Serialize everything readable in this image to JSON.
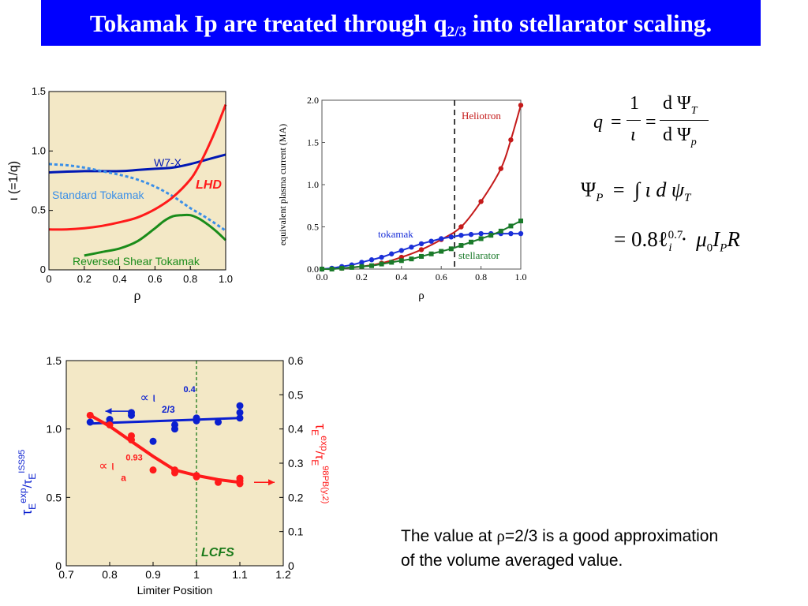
{
  "slide": {
    "title_main": "Tokamak Ip are treated through q",
    "title_sub": "2/3",
    "title_rest": " into stellarator scaling.",
    "note_line1_a": "The value at ",
    "note_rho": "ρ",
    "note_line1_b": "=2/3 is a good approximation",
    "note_line2": "of the volume averaged value."
  },
  "equations": {
    "q": "q",
    "eq": "=",
    "one": "1",
    "iota": "ι",
    "dpsiT": "d Ψ",
    "T": "T",
    "dpsip": "d Ψ",
    "p": "p",
    "PsiP": "Ψ",
    "P": "P",
    "integrand": "∫ ι d ψ",
    "T2": "T",
    "line3": "= 0.8ℓ",
    "i": "i",
    "exp07": "0.7",
    "dot": "·",
    "mu": "μ",
    "zero": "0",
    "I": "I",
    "Psub": "P",
    "R": "R"
  },
  "chart_data": [
    {
      "type": "line",
      "xlabel": "ρ",
      "ylabel": "ι (=1/q)",
      "xlim": [
        0,
        1.0
      ],
      "ylim": [
        0,
        1.5
      ],
      "xticks": [
        "0",
        "0.2",
        "0.4",
        "0.6",
        "0.8",
        "1.0"
      ],
      "yticks": [
        "0",
        "0.5",
        "1.0",
        "1.5"
      ],
      "background": "#f3e8c6",
      "series": [
        {
          "name": "W7-X",
          "color": "#0018b4",
          "style": "solid",
          "x": [
            0,
            0.2,
            0.4,
            0.5,
            0.6,
            0.7,
            0.8,
            0.9,
            1.0
          ],
          "y": [
            0.82,
            0.83,
            0.83,
            0.84,
            0.85,
            0.86,
            0.89,
            0.93,
            0.97
          ]
        },
        {
          "name": "Standard Tokamak",
          "color": "#3a8fe8",
          "style": "dashed",
          "x": [
            0,
            0.1,
            0.2,
            0.3,
            0.4,
            0.5,
            0.6,
            0.7,
            0.8,
            0.9,
            1.0
          ],
          "y": [
            0.89,
            0.88,
            0.86,
            0.83,
            0.8,
            0.76,
            0.7,
            0.62,
            0.52,
            0.43,
            0.33
          ]
        },
        {
          "name": "LHD",
          "color": "#ff1a1a",
          "style": "solid",
          "x": [
            0,
            0.1,
            0.2,
            0.3,
            0.4,
            0.5,
            0.6,
            0.7,
            0.8,
            0.85,
            0.9,
            0.95,
            1.0
          ],
          "y": [
            0.34,
            0.34,
            0.35,
            0.37,
            0.4,
            0.44,
            0.51,
            0.61,
            0.76,
            0.88,
            1.03,
            1.2,
            1.39
          ]
        },
        {
          "name": "Reversed Shear Tokamak",
          "color": "#1a8c1a",
          "style": "solid",
          "x": [
            0.2,
            0.3,
            0.4,
            0.5,
            0.6,
            0.65,
            0.7,
            0.75,
            0.8,
            0.85,
            0.9,
            0.95,
            1.0
          ],
          "y": [
            0.12,
            0.15,
            0.18,
            0.24,
            0.35,
            0.41,
            0.45,
            0.46,
            0.46,
            0.43,
            0.38,
            0.32,
            0.25
          ]
        }
      ],
      "labels": [
        "W7-X",
        "Standard Tokamak",
        "LHD",
        "Reversed Shear Tokamak"
      ]
    },
    {
      "type": "line",
      "xlabel": "ρ",
      "ylabel": "equivalent plasma current (MA)",
      "xlim": [
        0,
        1.0
      ],
      "ylim": [
        0,
        2.0
      ],
      "xticks": [
        "0.0",
        "0.2",
        "0.4",
        "0.6",
        "0.8",
        "1.0"
      ],
      "yticks": [
        "0.0",
        "0.5",
        "1.0",
        "1.5",
        "2.0"
      ],
      "vline_x": 0.667,
      "series": [
        {
          "name": "Heliotron",
          "color": "#c41a1a",
          "x": [
            0,
            0.1,
            0.2,
            0.3,
            0.4,
            0.5,
            0.6,
            0.7,
            0.8,
            0.9,
            0.95,
            1.0
          ],
          "y": [
            0.0,
            0.01,
            0.03,
            0.07,
            0.14,
            0.23,
            0.35,
            0.5,
            0.8,
            1.19,
            1.53,
            1.94
          ]
        },
        {
          "name": "tokamak",
          "color": "#1a2fd8",
          "x": [
            0,
            0.05,
            0.1,
            0.15,
            0.2,
            0.25,
            0.3,
            0.35,
            0.4,
            0.45,
            0.5,
            0.55,
            0.6,
            0.65,
            0.7,
            0.75,
            0.8,
            0.85,
            0.9,
            0.95,
            1.0
          ],
          "y": [
            0,
            0.01,
            0.03,
            0.05,
            0.08,
            0.11,
            0.14,
            0.18,
            0.22,
            0.26,
            0.3,
            0.33,
            0.36,
            0.38,
            0.4,
            0.41,
            0.42,
            0.42,
            0.42,
            0.42,
            0.42
          ]
        },
        {
          "name": "stellarator",
          "color": "#1a7a2a",
          "x": [
            0,
            0.05,
            0.1,
            0.15,
            0.2,
            0.25,
            0.3,
            0.35,
            0.4,
            0.45,
            0.5,
            0.55,
            0.6,
            0.65,
            0.7,
            0.75,
            0.8,
            0.85,
            0.9,
            0.95,
            1.0
          ],
          "y": [
            0,
            0.0,
            0.01,
            0.02,
            0.03,
            0.04,
            0.06,
            0.08,
            0.1,
            0.12,
            0.15,
            0.18,
            0.21,
            0.24,
            0.28,
            0.32,
            0.36,
            0.4,
            0.45,
            0.51,
            0.57
          ]
        }
      ],
      "labels": [
        "Heliotron",
        "tokamak",
        "stellarator"
      ]
    },
    {
      "type": "scatter",
      "xlabel": "Limiter Position",
      "xlim": [
        0.7,
        1.2
      ],
      "ylim_left": [
        0,
        1.5
      ],
      "ylim_right": [
        0,
        0.6
      ],
      "xticks": [
        "0.7",
        "0.8",
        "0.9",
        "1",
        "1.1",
        "1.2"
      ],
      "yticks_left": [
        "0",
        "0.5",
        "1.0",
        "1.5"
      ],
      "yticks_right": [
        "0",
        "0.1",
        "0.2",
        "0.3",
        "0.4",
        "0.5",
        "0.6"
      ],
      "vline_x": 1.0,
      "vline_label": "LCFS",
      "background": "#f3e8c6",
      "blue_points": {
        "color": "#0a1fd0",
        "x": [
          0.755,
          0.8,
          0.85,
          0.85,
          0.9,
          0.95,
          0.95,
          1.0,
          1.0,
          1.05,
          1.1,
          1.1,
          1.1
        ],
        "y": [
          1.05,
          1.07,
          1.1,
          1.12,
          0.91,
          1.03,
          1.0,
          1.06,
          1.08,
          1.05,
          1.08,
          1.12,
          1.17
        ]
      },
      "blue_fit": {
        "x": [
          0.755,
          1.1
        ],
        "y": [
          1.04,
          1.08
        ]
      },
      "red_points": {
        "color": "#ff1a1a",
        "x": [
          0.755,
          0.8,
          0.85,
          0.85,
          0.9,
          0.95,
          0.95,
          1.0,
          1.0,
          1.05,
          1.1,
          1.1,
          1.1
        ],
        "y": [
          1.1,
          1.03,
          0.95,
          0.92,
          0.7,
          0.7,
          0.68,
          0.66,
          0.65,
          0.61,
          0.62,
          0.6,
          0.64
        ]
      },
      "red_fit": {
        "x": [
          0.755,
          0.8,
          0.85,
          0.9,
          0.95,
          1.0,
          1.05,
          1.1
        ],
        "y": [
          1.1,
          1.02,
          0.91,
          0.8,
          0.7,
          0.66,
          0.63,
          0.61
        ]
      },
      "blue_annotation": {
        "prop": "∝ ι",
        "exp": "0.4",
        "sub": "2/3"
      },
      "red_annotation": {
        "prop": "∝ ι",
        "exp": "0.93",
        "sub": "a"
      },
      "left_label_tau": "τ",
      "left_label_E": "E",
      "left_label_exp": "exp",
      "left_label_slash": "/τ",
      "left_label_E2": "E",
      "left_label_iss": "ISS95",
      "right_label_tau": "τ",
      "right_label_E": "E",
      "right_label_exp": "exp",
      "right_label_slash": "/τ",
      "right_label_E2": "E",
      "right_label_98": "98PB(y,2)"
    }
  ]
}
